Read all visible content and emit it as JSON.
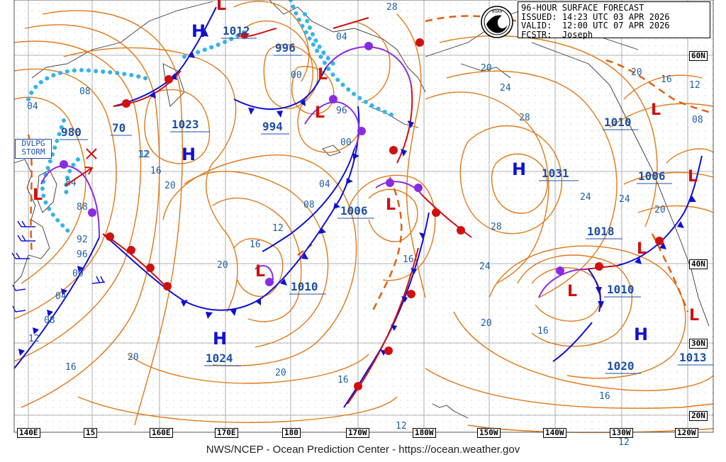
{
  "header": {
    "line1": "96-HOUR SURFACE FORECAST",
    "issued_label": "ISSUED:",
    "issued": "14:23 UTC 03 APR 2026",
    "valid_label": "VALID:",
    "valid": "12:00 UTC 07 APR 2026",
    "fcstr_label": "FCSTR:",
    "fcstr": "Joseph"
  },
  "logo": {
    "text": "NOAA",
    "icon": "noaa-logo"
  },
  "footer": "NWS/NCEP - Ocean Prediction Center - https://ocean.weather.gov",
  "storm_label": {
    "line1": "DVLPG",
    "line2": "STORM"
  },
  "longitudes": [
    "140E",
    "15",
    "160E",
    "170E",
    "180",
    "170W",
    "180W",
    "150W",
    "140W",
    "130W",
    "120W"
  ],
  "latitudes": [
    "60N",
    "40N",
    "30N",
    "20N"
  ],
  "pressure_centers": [
    {
      "type": "H",
      "value": "1023"
    },
    {
      "type": "H",
      "value": "1024"
    },
    {
      "type": "H",
      "value": "1031"
    },
    {
      "type": "H",
      "value": "1020"
    },
    {
      "type": "H",
      "value": "1013"
    },
    {
      "type": "L",
      "value": "980"
    },
    {
      "type": "L",
      "value": "994"
    },
    {
      "type": "L",
      "value": "996"
    },
    {
      "type": "L",
      "value": "1012"
    },
    {
      "type": "L",
      "value": "1006"
    },
    {
      "type": "L",
      "value": "1010"
    },
    {
      "type": "L",
      "value": "1010"
    },
    {
      "type": "L",
      "value": "1018"
    },
    {
      "type": "L",
      "value": "1010"
    },
    {
      "type": "L",
      "value": "1006"
    },
    {
      "type": "L",
      "value": "70"
    }
  ],
  "isobar_labels": [
    "08",
    "04",
    "04",
    "00",
    "96",
    "00",
    "04",
    "08",
    "12",
    "16",
    "20",
    "20",
    "20",
    "16",
    "12",
    "84",
    "88",
    "92",
    "96",
    "00",
    "04",
    "08",
    "12",
    "16",
    "20",
    "12",
    "16",
    "20",
    "24",
    "28",
    "28",
    "24",
    "20",
    "24",
    "20",
    "16",
    "16",
    "16",
    "12",
    "12",
    "08",
    "12",
    "16",
    "20",
    "24",
    "28"
  ],
  "colors": {
    "isobar": "#e07818",
    "cold_front": "#1010d0",
    "warm_front": "#d01010",
    "occluded": "#8a2be2",
    "ice_edge": "#35b3e8",
    "grid": "#aaaaaa",
    "coast": "#333333"
  }
}
